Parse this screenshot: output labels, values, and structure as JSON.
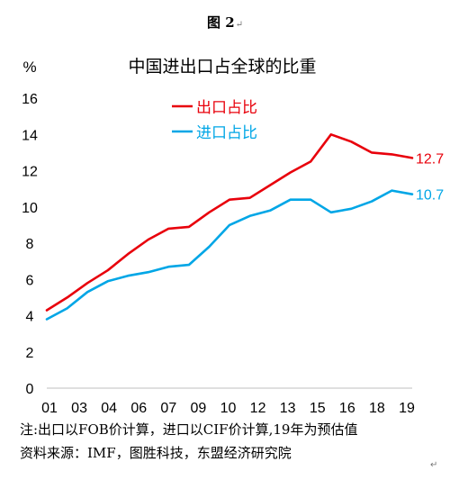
{
  "figure_caption": "图 2",
  "paragraph_mark": "↵",
  "chart_data": {
    "type": "line",
    "title": "中国进出口占全球的比重",
    "ylabel": "%",
    "xlabel": "",
    "ylim": [
      0,
      16
    ],
    "y_ticks": [
      0,
      2,
      4,
      6,
      8,
      10,
      12,
      14,
      16
    ],
    "x_tick_labels": [
      "01",
      "03",
      "04",
      "06",
      "07",
      "09",
      "10",
      "12",
      "13",
      "15",
      "16",
      "18",
      "19"
    ],
    "x": [
      2001,
      2002,
      2003,
      2004,
      2005,
      2006,
      2007,
      2008,
      2009,
      2010,
      2011,
      2012,
      2013,
      2014,
      2015,
      2016,
      2017,
      2018,
      2019
    ],
    "grid": false,
    "legend_position": "top-center",
    "series": [
      {
        "name": "出口占比",
        "color": "#e8000b",
        "values": [
          4.3,
          5.0,
          5.8,
          6.5,
          7.4,
          8.2,
          8.8,
          8.9,
          9.7,
          10.4,
          10.5,
          11.2,
          11.9,
          12.5,
          14.0,
          13.6,
          13.0,
          12.9,
          12.7
        ],
        "end_label": "12.7"
      },
      {
        "name": "进口占比",
        "color": "#00a6e6",
        "values": [
          3.8,
          4.4,
          5.3,
          5.9,
          6.2,
          6.4,
          6.7,
          6.8,
          7.8,
          9.0,
          9.5,
          9.8,
          10.4,
          10.4,
          9.7,
          9.9,
          10.3,
          10.9,
          10.7
        ],
        "end_label": "10.7"
      }
    ]
  },
  "notes": {
    "line1": "注:出口以FOB价计算，进口以CIF价计算,19年为预估值",
    "line2": "资料来源：IMF，图胜科技，东盟经济研究院"
  }
}
